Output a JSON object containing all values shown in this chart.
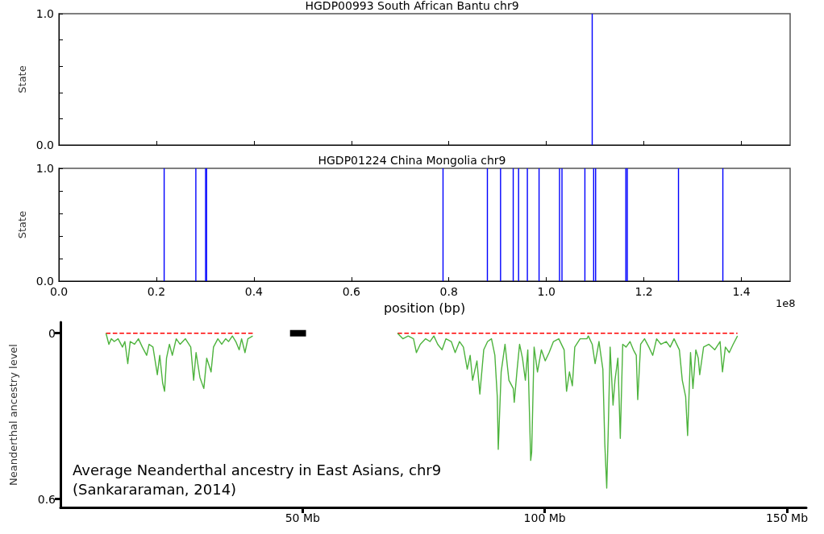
{
  "chart_data": [
    {
      "type": "line",
      "title": "HGDP00993 South African Bantu chr9",
      "ylabel": "State",
      "xlim": [
        0,
        1.5
      ],
      "ylim": [
        0,
        1
      ],
      "xticks": [
        0,
        0.2,
        0.4,
        0.6,
        0.8,
        1,
        1.2,
        1.4
      ],
      "yticks": [
        {
          "value": 0,
          "label": "0.0"
        },
        {
          "value": 0.2,
          "label": null
        },
        {
          "value": 0.4,
          "label": null
        },
        {
          "value": 0.6,
          "label": null
        },
        {
          "value": 0.8,
          "label": null
        },
        {
          "value": 1,
          "label": "1.0"
        }
      ],
      "tick_labels": "y",
      "marker": "none",
      "line_style": "solid",
      "series": [
        {
          "color": "#0000ff",
          "x": [
            1.094,
            1.094
          ],
          "values": [
            0,
            1
          ]
        }
      ]
    },
    {
      "type": "line",
      "title": "HGDP01224 China Mongolia chr9",
      "ylabel": "State",
      "xlabel": "position (bp)",
      "annotations": [
        "1e8"
      ],
      "xlim": [
        0,
        1.5
      ],
      "ylim": [
        0,
        1
      ],
      "xticks": [
        {
          "value": 0,
          "label": "0.0"
        },
        {
          "value": 0.2,
          "label": "0.2"
        },
        {
          "value": 0.4,
          "label": "0.4"
        },
        {
          "value": 0.6,
          "label": "0.6"
        },
        {
          "value": 0.8,
          "label": "0.8"
        },
        {
          "value": 1,
          "label": "1.0"
        },
        {
          "value": 1.2,
          "label": "1.2"
        },
        {
          "value": 1.4,
          "label": "1.4"
        }
      ],
      "yticks": [
        {
          "value": 0,
          "label": "0.0"
        },
        {
          "value": 0.2,
          "label": null
        },
        {
          "value": 0.4,
          "label": null
        },
        {
          "value": 0.6,
          "label": null
        },
        {
          "value": 0.8,
          "label": null
        },
        {
          "value": 1,
          "label": "1.0"
        }
      ],
      "marker": "none",
      "line_style": "solid",
      "series": [
        {
          "color": "#0000ff",
          "x": [
            0.216,
            0.216
          ],
          "values": [
            0,
            1
          ]
        },
        {
          "color": "#0000ff",
          "x": [
            0.281,
            0.281
          ],
          "values": [
            0,
            1
          ]
        },
        {
          "color": "#0000ff",
          "x": [
            0.301,
            0.301
          ],
          "values": [
            0,
            1
          ]
        },
        {
          "color": "#0000ff",
          "x": [
            0.303,
            0.303
          ],
          "values": [
            0,
            1
          ]
        },
        {
          "color": "#0000ff",
          "x": [
            0.788,
            0.788
          ],
          "values": [
            0,
            1
          ]
        },
        {
          "color": "#0000ff",
          "x": [
            0.879,
            0.879
          ],
          "values": [
            0,
            1
          ]
        },
        {
          "color": "#0000ff",
          "x": [
            0.906,
            0.906
          ],
          "values": [
            0,
            1
          ]
        },
        {
          "color": "#0000ff",
          "x": [
            0.932,
            0.932
          ],
          "values": [
            0,
            1
          ]
        },
        {
          "color": "#0000ff",
          "x": [
            0.943,
            0.943
          ],
          "values": [
            0,
            1
          ]
        },
        {
          "color": "#0000ff",
          "x": [
            0.961,
            0.961
          ],
          "values": [
            0,
            1
          ]
        },
        {
          "color": "#0000ff",
          "x": [
            0.985,
            0.985
          ],
          "values": [
            0,
            1
          ]
        },
        {
          "color": "#0000ff",
          "x": [
            1.027,
            1.027
          ],
          "values": [
            0,
            1
          ]
        },
        {
          "color": "#0000ff",
          "x": [
            1.032,
            1.032
          ],
          "values": [
            0,
            1
          ]
        },
        {
          "color": "#0000ff",
          "x": [
            1.079,
            1.079
          ],
          "values": [
            0,
            1
          ]
        },
        {
          "color": "#0000ff",
          "x": [
            1.097,
            1.097
          ],
          "values": [
            0,
            1
          ]
        },
        {
          "color": "#0000ff",
          "x": [
            1.101,
            1.101
          ],
          "values": [
            0,
            1
          ]
        },
        {
          "color": "#0000ff",
          "x": [
            1.163,
            1.163
          ],
          "values": [
            0,
            1
          ]
        },
        {
          "color": "#0000ff",
          "x": [
            1.166,
            1.166
          ],
          "values": [
            0,
            1
          ]
        },
        {
          "color": "#0000ff",
          "x": [
            1.271,
            1.271
          ],
          "values": [
            0,
            1
          ]
        },
        {
          "color": "#0000ff",
          "x": [
            1.362,
            1.362
          ],
          "values": [
            0,
            1
          ]
        }
      ]
    },
    {
      "type": "line",
      "ylabel": "Neanderthal ancestry level",
      "annotations": [
        "Average Neanderthal ancestry in East Asians, chr9",
        "(Sankararaman, 2014)"
      ],
      "xlim": [
        0,
        154
      ],
      "ylim": [
        0.63,
        -0.04
      ],
      "xticks": [
        {
          "value": 50,
          "label": "50 Mb"
        },
        {
          "value": 100,
          "label": "100 Mb"
        },
        {
          "value": 150,
          "label": "150 Mb"
        }
      ],
      "yticks": [
        0,
        0.6
      ],
      "marker": "none",
      "series": [
        {
          "color": "#ff0000",
          "line_style": "dashed",
          "x": [
            9.4,
            39.7,
            55,
            69.6,
            139.8
          ],
          "values": [
            0,
            0,
            null,
            0,
            0
          ]
        },
        {
          "color": "#000000",
          "x": [
            47.4,
            50.7
          ],
          "values": [
            0,
            0
          ]
        },
        {
          "color": "#4db33d",
          "line_style": "solid",
          "x": [
            9.4,
            10.0,
            10.5,
            11.1,
            11.9,
            12.8,
            13.3,
            13.9,
            14.4,
            15.3,
            16.1,
            16.9,
            17.8,
            18.3,
            19.1,
            20.0,
            20.5,
            21.1,
            21.5,
            21.9,
            22.5,
            23.1,
            23.9,
            24.7,
            25.8,
            26.9,
            27.5,
            28.0,
            28.8,
            29.6,
            30.2,
            31.1,
            31.6,
            32.5,
            33.3,
            34.1,
            34.7,
            35.5,
            36.2,
            36.9,
            37.4,
            38.1,
            38.7,
            39.7,
            55,
            69.6,
            70.7,
            71.8,
            72.9,
            73.5,
            74.3,
            75.4,
            76.3,
            77.1,
            77.9,
            78.8,
            79.6,
            80.7,
            81.5,
            82.4,
            83.2,
            84.0,
            84.6,
            85.1,
            86.0,
            86.6,
            87.4,
            88.2,
            89.0,
            89.7,
            90.2,
            90.4,
            91.0,
            91.8,
            92.6,
            93.5,
            93.7,
            94.3,
            94.8,
            95.4,
            96.0,
            96.5,
            97.1,
            97.3,
            97.8,
            98.5,
            99.3,
            100.1,
            100.9,
            101.8,
            102.9,
            104.0,
            104.5,
            105.1,
            105.7,
            106.2,
            107.3,
            108.7,
            109.0,
            109.8,
            110.4,
            111.2,
            112.0,
            112.4,
            112.8,
            113.1,
            113.5,
            114.1,
            114.5,
            115.1,
            115.6,
            116.1,
            116.8,
            117.6,
            118.3,
            118.9,
            119.2,
            119.8,
            120.6,
            121.5,
            122.3,
            123.1,
            124.0,
            125.1,
            125.9,
            126.7,
            127.8,
            128.4,
            129.1,
            129.5,
            130.1,
            130.6,
            131.2,
            131.7,
            132.0,
            132.8,
            133.9,
            135.1,
            136.2,
            136.7,
            137.3,
            138.1,
            138.9,
            139.8
          ],
          "values": [
            0,
            0.04,
            0.02,
            0.03,
            0.02,
            0.05,
            0.03,
            0.11,
            0.03,
            0.04,
            0.02,
            0.05,
            0.08,
            0.04,
            0.05,
            0.15,
            0.08,
            0.18,
            0.21,
            0.09,
            0.04,
            0.08,
            0.02,
            0.04,
            0.02,
            0.05,
            0.17,
            0.07,
            0.16,
            0.2,
            0.09,
            0.14,
            0.05,
            0.02,
            0.04,
            0.02,
            0.03,
            0.01,
            0.03,
            0.06,
            0.02,
            0.07,
            0.02,
            0.01,
            null,
            0,
            0.02,
            0.01,
            0.02,
            0.07,
            0.04,
            0.02,
            0.03,
            0.01,
            0.04,
            0.06,
            0.02,
            0.03,
            0.07,
            0.03,
            0.05,
            0.13,
            0.08,
            0.17,
            0.1,
            0.22,
            0.06,
            0.03,
            0.02,
            0.08,
            0.23,
            0.42,
            0.14,
            0.04,
            0.17,
            0.2,
            0.25,
            0.13,
            0.04,
            0.09,
            0.17,
            0.06,
            0.46,
            0.43,
            0.05,
            0.14,
            0.06,
            0.1,
            0.07,
            0.03,
            0.02,
            0.06,
            0.21,
            0.14,
            0.19,
            0.05,
            0.02,
            0.02,
            0.01,
            0.04,
            0.11,
            0.03,
            0.13,
            0.4,
            0.56,
            0.36,
            0.05,
            0.26,
            0.17,
            0.09,
            0.38,
            0.04,
            0.05,
            0.03,
            0.06,
            0.08,
            0.24,
            0.04,
            0.02,
            0.05,
            0.08,
            0.02,
            0.04,
            0.03,
            0.05,
            0.02,
            0.06,
            0.17,
            0.23,
            0.37,
            0.07,
            0.2,
            0.06,
            0.09,
            0.15,
            0.05,
            0.04,
            0.06,
            0.03,
            0.14,
            0.05,
            0.07,
            0.04,
            0.01
          ]
        }
      ]
    }
  ]
}
